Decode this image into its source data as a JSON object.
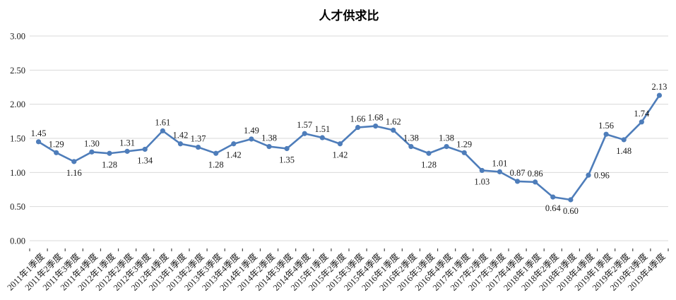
{
  "chart_data": {
    "type": "line",
    "title": "人才供求比",
    "categories": [
      "2011年1季度",
      "2011年2季度",
      "2011年3季度",
      "2011年4季度",
      "2012年1季度",
      "2012年2季度",
      "2012年3季度",
      "2012年4季度",
      "2013年1季度",
      "2013年2季度",
      "2013年3季度",
      "2013年4季度",
      "2014年1季度",
      "2014年2季度",
      "2014年3季度",
      "2014年4季度",
      "2015年1季度",
      "2015年2季度",
      "2015年3季度",
      "2015年4季度",
      "2016年1季度",
      "2016年2季度",
      "2016年3季度",
      "2016年4季度",
      "2017年1季度",
      "2017年2季度",
      "2017年3季度",
      "2017年4季度",
      "2018年1季度",
      "2018年2季度",
      "2018年3季度",
      "2018年4季度",
      "2019年1季度",
      "2019年2季度",
      "2019年3季度",
      "2019年4季度"
    ],
    "values": [
      1.45,
      1.29,
      1.16,
      1.3,
      1.28,
      1.31,
      1.34,
      1.61,
      1.42,
      1.37,
      1.28,
      1.42,
      1.49,
      1.38,
      1.35,
      1.57,
      1.51,
      1.42,
      1.66,
      1.68,
      1.62,
      1.38,
      1.28,
      1.38,
      1.29,
      1.03,
      1.01,
      0.87,
      0.86,
      0.64,
      0.6,
      0.96,
      1.56,
      1.48,
      1.74,
      2.13
    ],
    "value_labels": [
      "1.45",
      "1.29",
      "1.16",
      "1.30",
      "1.28",
      "1.31",
      "1.34",
      "1.61",
      "1.42",
      "1.37",
      "1.28",
      "1.42",
      "1.49",
      "1.38",
      "1.35",
      "1.57",
      "1.51",
      "1.42",
      "1.66",
      "1.68",
      "1.62",
      "1.38",
      "1.28",
      "1.38",
      "1.29",
      "1.03",
      "1.01",
      "0.87",
      "0.86",
      "0.64",
      "0.60",
      "0.96",
      "1.56",
      "1.48",
      "1.74",
      "2.13"
    ],
    "label_positions": [
      "above",
      "above",
      "below",
      "above",
      "below",
      "above",
      "below",
      "above",
      "above",
      "above",
      "below",
      "below",
      "above",
      "above",
      "below",
      "above",
      "above",
      "below",
      "above",
      "above",
      "above",
      "above",
      "below",
      "above",
      "above",
      "below",
      "above",
      "above",
      "above",
      "below",
      "below",
      "right",
      "above",
      "below",
      "above",
      "above"
    ],
    "xlabel": "",
    "ylabel": "",
    "ylim": [
      0,
      3
    ],
    "ytick_step": 0.5,
    "ytick_labels": [
      "0.00",
      "0.50",
      "1.00",
      "1.50",
      "2.00",
      "2.50",
      "3.00"
    ],
    "grid": true,
    "legend": "none",
    "colors": {
      "line": "#4E7DBA",
      "marker": "#4E7DBA",
      "gridline": "#D9D9D9",
      "tick_mark": "#4d4d4d",
      "text": "#1a1a1a",
      "background": "#FFFFFF"
    }
  }
}
